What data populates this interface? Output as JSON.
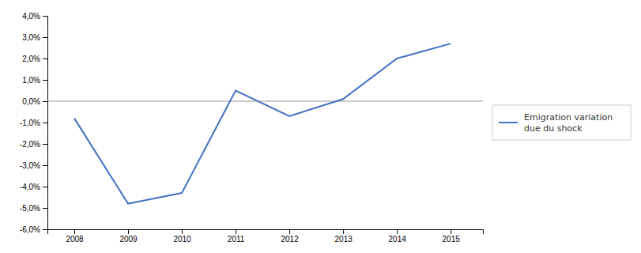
{
  "chart_data": {
    "type": "line",
    "x": [
      2008,
      2009,
      2010,
      2011,
      2012,
      2013,
      2014,
      2015
    ],
    "series": [
      {
        "name": "Emigration variation\ndue du shock",
        "color": "#4472C4",
        "values": [
          -0.008,
          -0.048,
          -0.043,
          0.005,
          -0.007,
          0.001,
          0.02,
          0.027
        ]
      }
    ],
    "xlim": [
      2007.5,
      2015.6
    ],
    "xticks": [
      2008,
      2009,
      2010,
      2011,
      2012,
      2013,
      2014,
      2015
    ],
    "ylim": [
      -0.06,
      0.04
    ],
    "yticks": [
      {
        "value": -0.06,
        "label": "-6,0%"
      },
      {
        "value": -0.05,
        "label": "-5,0%"
      },
      {
        "value": -0.04,
        "label": "-4,0%"
      },
      {
        "value": -0.03,
        "label": "-3,0%"
      },
      {
        "value": -0.02,
        "label": "-2,0%"
      },
      {
        "value": -0.01,
        "label": "-1,0%"
      },
      {
        "value": 0.0,
        "label": "0,0%"
      },
      {
        "value": 0.01,
        "label": "1,0%"
      },
      {
        "value": 0.02,
        "label": "2,0%"
      },
      {
        "value": 0.03,
        "label": "3,0%"
      },
      {
        "value": 0.04,
        "label": "4,0%"
      }
    ],
    "grid": false,
    "legend": "right"
  }
}
